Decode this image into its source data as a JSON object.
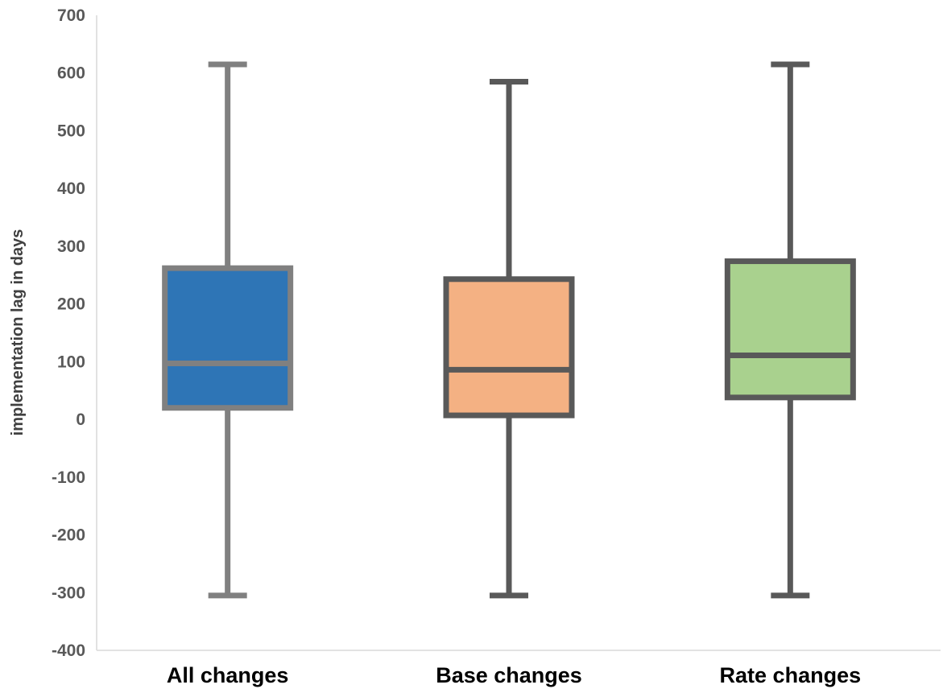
{
  "chart_data": {
    "type": "box",
    "title": "",
    "xlabel": "",
    "ylabel": "implementation lag in days",
    "ylim": [
      -400,
      700
    ],
    "yticks": [
      700,
      600,
      500,
      400,
      300,
      200,
      100,
      0,
      -100,
      -200,
      -300,
      -400
    ],
    "grid": false,
    "legend": "none",
    "categories": [
      "All changes",
      "Base changes",
      "Rate changes"
    ],
    "boxes": [
      {
        "category": "All changes",
        "min": -305,
        "q1": 20,
        "median": 97,
        "q3": 262,
        "max": 615,
        "fill": "#2E75B6",
        "stroke": "#808080"
      },
      {
        "category": "Base changes",
        "min": -305,
        "q1": 7,
        "median": 86,
        "q3": 243,
        "max": 585,
        "fill": "#F4B183",
        "stroke": "#595959"
      },
      {
        "category": "Rate changes",
        "min": -305,
        "q1": 38,
        "median": 111,
        "q3": 274,
        "max": 615,
        "fill": "#A9D18E",
        "stroke": "#595959"
      }
    ],
    "axis_color": "#D9D9D9"
  }
}
